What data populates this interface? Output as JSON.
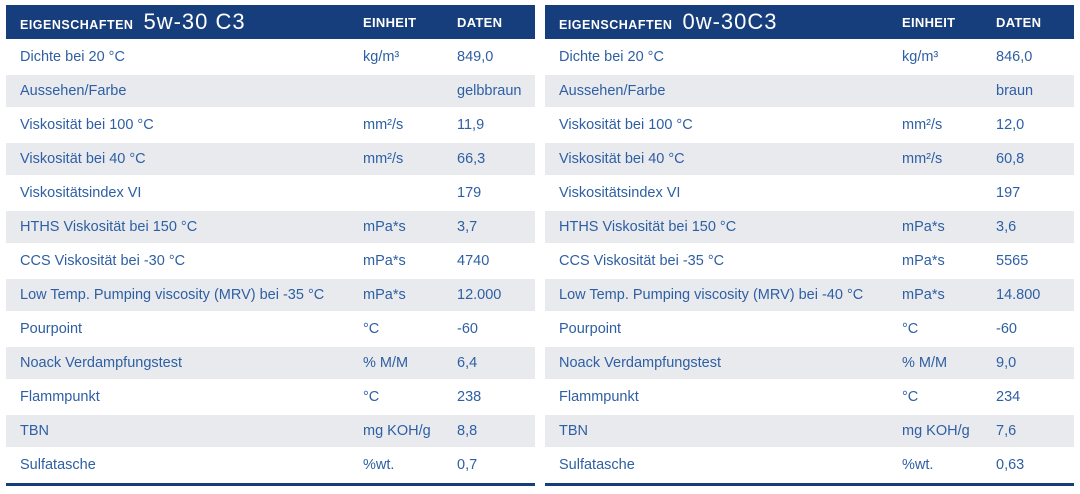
{
  "colors": {
    "header_background": "#173e7c",
    "row_stripe": "#e8eaee",
    "text_blue": "#2e5fa3",
    "bottom_rule": "#173e7c"
  },
  "tables": [
    {
      "header": {
        "label": "EIGENSCHAFTEN",
        "grade": "5w-30 C3",
        "unit_col": "EINHEIT",
        "data_col": "DATEN"
      },
      "rows": [
        {
          "property": "Dichte bei 20 °C",
          "unit": "kg/m³",
          "value": "849,0"
        },
        {
          "property": "Aussehen/Farbe",
          "unit": "",
          "value": "gelbbraun"
        },
        {
          "property": "Viskosität bei 100 °C",
          "unit": "mm²/s",
          "value": "11,9"
        },
        {
          "property": "Viskosität bei 40 °C",
          "unit": "mm²/s",
          "value": "66,3"
        },
        {
          "property": "Viskositätsindex VI",
          "unit": "",
          "value": "179"
        },
        {
          "property": "HTHS Viskosität bei 150 °C",
          "unit": "mPa*s",
          "value": "3,7"
        },
        {
          "property": "CCS Viskosität bei -30 °C",
          "unit": "mPa*s",
          "value": "4740"
        },
        {
          "property": "Low Temp. Pumping viscosity (MRV) bei -35 °C",
          "unit": "mPa*s",
          "value": "12.000"
        },
        {
          "property": "Pourpoint",
          "unit": "°C",
          "value": "-60"
        },
        {
          "property": "Noack Verdampfungstest",
          "unit": "% M/M",
          "value": "6,4"
        },
        {
          "property": "Flammpunkt",
          "unit": "°C",
          "value": "238"
        },
        {
          "property": "TBN",
          "unit": "mg KOH/g",
          "value": "8,8"
        },
        {
          "property": "Sulfatasche",
          "unit": "%wt.",
          "value": "0,7"
        }
      ]
    },
    {
      "header": {
        "label": "EIGENSCHAFTEN",
        "grade": "0w-30C3",
        "unit_col": "EINHEIT",
        "data_col": "DATEN"
      },
      "rows": [
        {
          "property": "Dichte bei 20 °C",
          "unit": "kg/m³",
          "value": "846,0"
        },
        {
          "property": "Aussehen/Farbe",
          "unit": "",
          "value": "braun"
        },
        {
          "property": "Viskosität bei 100 °C",
          "unit": "mm²/s",
          "value": "12,0"
        },
        {
          "property": "Viskosität bei 40 °C",
          "unit": "mm²/s",
          "value": "60,8"
        },
        {
          "property": "Viskositätsindex VI",
          "unit": "",
          "value": "197"
        },
        {
          "property": "HTHS Viskosität bei 150 °C",
          "unit": "mPa*s",
          "value": "3,6"
        },
        {
          "property": "CCS Viskosität bei -35 °C",
          "unit": "mPa*s",
          "value": "5565"
        },
        {
          "property": "Low Temp. Pumping viscosity (MRV) bei -40 °C",
          "unit": "mPa*s",
          "value": "14.800"
        },
        {
          "property": "Pourpoint",
          "unit": "°C",
          "value": "-60"
        },
        {
          "property": "Noack Verdampfungstest",
          "unit": "% M/M",
          "value": "9,0"
        },
        {
          "property": "Flammpunkt",
          "unit": "°C",
          "value": "234"
        },
        {
          "property": "TBN",
          "unit": "mg KOH/g",
          "value": "7,6"
        },
        {
          "property": "Sulfatasche",
          "unit": "%wt.",
          "value": "0,63"
        }
      ]
    }
  ]
}
